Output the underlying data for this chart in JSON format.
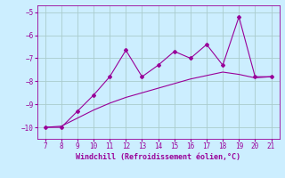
{
  "xlabel": "Windchill (Refroidissement éolien,°C)",
  "x_values": [
    7,
    8,
    9,
    10,
    11,
    12,
    13,
    14,
    15,
    16,
    17,
    18,
    19,
    20,
    21
  ],
  "y_line1": [
    -10.0,
    -10.0,
    -9.3,
    -8.6,
    -7.8,
    -6.65,
    -7.8,
    -7.3,
    -6.7,
    -7.0,
    -6.4,
    -7.3,
    -5.2,
    -7.8,
    -7.8
  ],
  "y_line2": [
    -10.0,
    -9.95,
    -9.6,
    -9.25,
    -8.95,
    -8.7,
    -8.5,
    -8.3,
    -8.1,
    -7.9,
    -7.75,
    -7.6,
    -7.7,
    -7.85,
    -7.8
  ],
  "line_color": "#990099",
  "bg_color": "#cceeff",
  "grid_color": "#aacccc",
  "ylim": [
    -10.5,
    -4.7
  ],
  "xlim": [
    6.5,
    21.5
  ],
  "yticks": [
    -10,
    -9,
    -8,
    -7,
    -6,
    -5
  ],
  "xticks": [
    7,
    8,
    9,
    10,
    11,
    12,
    13,
    14,
    15,
    16,
    17,
    18,
    19,
    20,
    21
  ]
}
